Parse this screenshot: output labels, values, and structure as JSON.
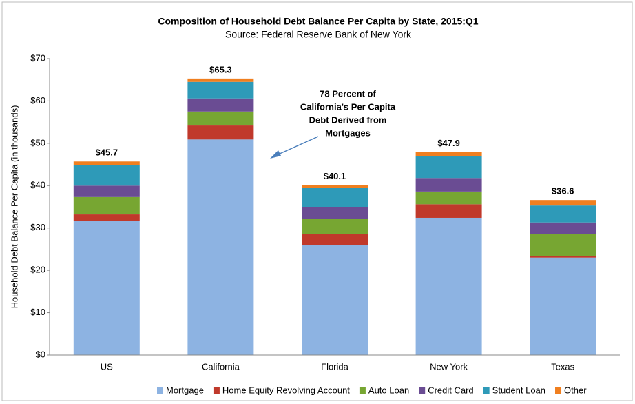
{
  "chart_data": {
    "type": "stacked_bar",
    "title": "Composition of Household Debt Balance Per Capita by State, 2015:Q1",
    "subtitle": "Source: Federal Reserve Bank of New York",
    "y_label": "Household Debt Balance Per Capita (in thousands)",
    "categories": [
      "US",
      "California",
      "Florida",
      "New York",
      "Texas"
    ],
    "series": [
      {
        "name": "Mortgage",
        "color": "#8db3e2",
        "values": [
          31.7,
          50.9,
          26.0,
          32.4,
          23.0
        ]
      },
      {
        "name": "Home Equity Revolving Account",
        "color": "#c0392b",
        "values": [
          1.5,
          3.3,
          2.5,
          3.2,
          0.4
        ]
      },
      {
        "name": "Auto Loan",
        "color": "#77a632",
        "values": [
          4.1,
          3.3,
          3.7,
          3.0,
          5.2
        ]
      },
      {
        "name": "Credit Card",
        "color": "#6a4c93",
        "values": [
          2.7,
          3.1,
          2.8,
          3.2,
          2.7
        ]
      },
      {
        "name": "Student Loan",
        "color": "#2e9ab8",
        "values": [
          4.8,
          3.9,
          4.4,
          5.2,
          4.0
        ]
      },
      {
        "name": "Other",
        "color": "#f07f1f",
        "values": [
          0.9,
          0.8,
          0.7,
          0.9,
          1.3
        ]
      }
    ],
    "totals": [
      45.7,
      65.3,
      40.1,
      47.9,
      36.6
    ],
    "total_labels": [
      "$45.7",
      "$65.3",
      "$40.1",
      "$47.9",
      "$36.6"
    ],
    "annotation": [
      "78 Percent of",
      "California's Per Capita",
      "Debt Derived from",
      "Mortgages"
    ],
    "ylim": [
      0,
      70
    ],
    "yticks": [
      {
        "value": 0,
        "label": "$0"
      },
      {
        "value": 10,
        "label": "$10"
      },
      {
        "value": 20,
        "label": "$20"
      },
      {
        "value": 30,
        "label": "$30"
      },
      {
        "value": 40,
        "label": "$40"
      },
      {
        "value": 50,
        "label": "$50"
      },
      {
        "value": 60,
        "label": "$60"
      },
      {
        "value": 70,
        "label": "$70"
      }
    ],
    "legend": "bottom"
  }
}
